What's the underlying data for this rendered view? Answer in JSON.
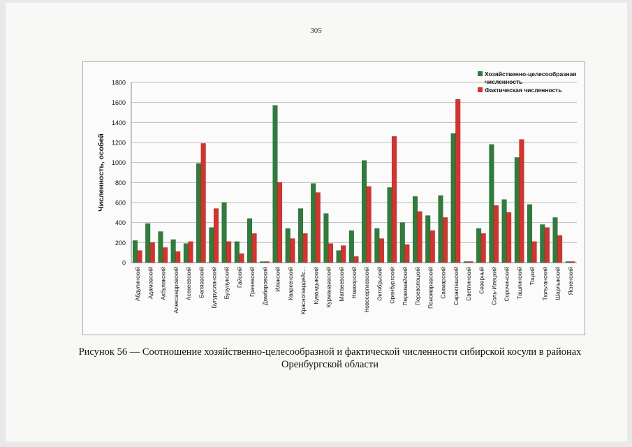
{
  "page_number": "305",
  "caption": {
    "line1": "Рисунок 56 — Соотношение хозяйственно-целесообразной и фактической численности сибирской косули в районах",
    "line2": "Оренбургской области"
  },
  "colors": {
    "series1": "#2e7d3a",
    "series2": "#d7322b",
    "grid": "#bdbdbd",
    "text": "#111111"
  },
  "chart_data": {
    "type": "bar",
    "ylabel": "Численность, особей",
    "xlabel": "",
    "ylim": [
      0,
      1800
    ],
    "yticks": [
      0,
      200,
      400,
      600,
      800,
      1000,
      1200,
      1400,
      1600,
      1800
    ],
    "grid": true,
    "legend_position": "top-right",
    "categories": [
      "Абдулинский",
      "Адамовский",
      "Акбулакский",
      "Александровский",
      "Асекеевский",
      "Беляевский",
      "Бугурусланский",
      "Бузулукский",
      "Гайский",
      "Грачевский",
      "Домбаровский",
      "Илекский",
      "Кваркенский",
      "Красногвардейс...",
      "Кувандыкский",
      "Курманаевский",
      "Матвеевский",
      "Новоорский",
      "Новосергиевский",
      "Октябрьский",
      "Оренбургский",
      "Первомайский",
      "Переволоцкий",
      "Пономаревский",
      "Сакмарский",
      "Саракташский",
      "Светлинский",
      "Северный",
      "Соль-Илецкий",
      "Сорочинский",
      "Ташлинский",
      "Тоцкий",
      "Тюльганский",
      "Шарлыкский",
      "Ясненский"
    ],
    "series": [
      {
        "name": "Хозяйственно-целесообразная численность",
        "values": [
          220,
          390,
          310,
          230,
          190,
          990,
          350,
          600,
          210,
          440,
          10,
          1570,
          340,
          540,
          790,
          490,
          120,
          320,
          1020,
          340,
          750,
          400,
          660,
          470,
          670,
          1290,
          0,
          340,
          1180,
          630,
          1050,
          580,
          380,
          450,
          0
        ]
      },
      {
        "name": "Фактическая численность",
        "values": [
          120,
          200,
          150,
          110,
          210,
          1190,
          540,
          210,
          90,
          290,
          0,
          800,
          240,
          290,
          700,
          190,
          170,
          60,
          760,
          240,
          1260,
          180,
          510,
          320,
          450,
          1630,
          0,
          290,
          570,
          500,
          1230,
          210,
          350,
          270,
          0
        ]
      }
    ]
  }
}
